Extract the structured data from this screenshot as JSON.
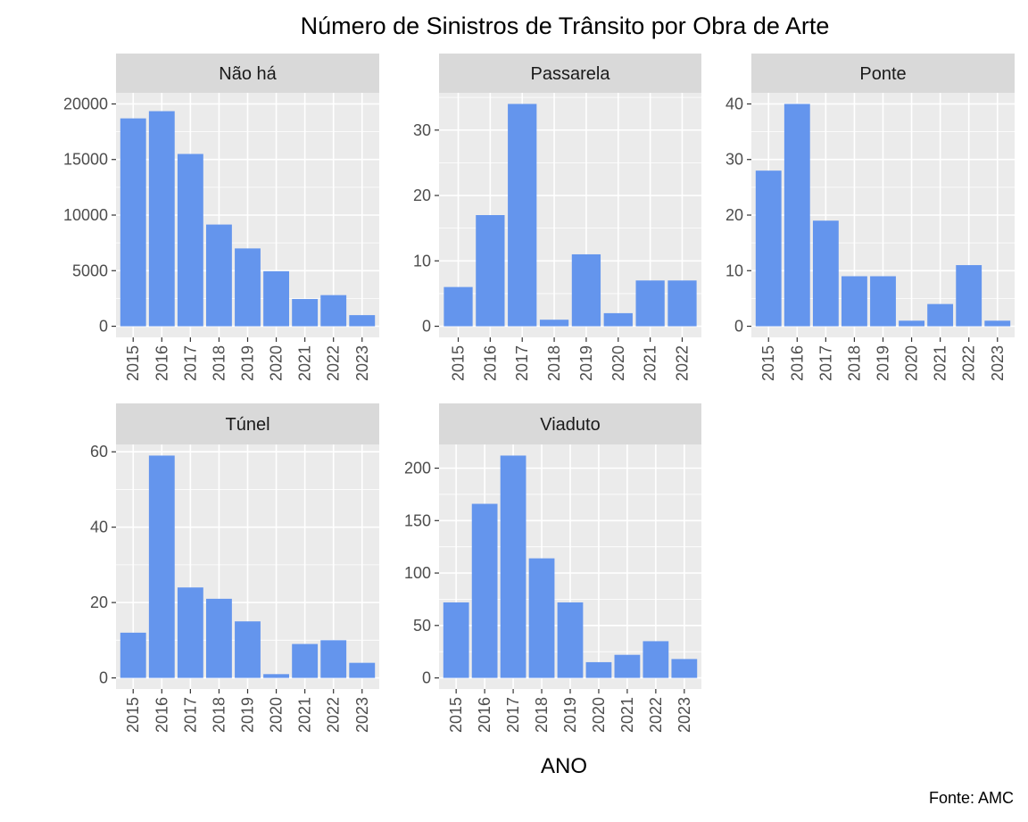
{
  "title": "Número de Sinistros de Trânsito por Obra de Arte",
  "xlabel": "ANO",
  "caption": "Fonte: AMC",
  "colors": {
    "bar": "#6495ED",
    "panel_background": "#EBEBEB",
    "strip_background": "#D9D9D9",
    "grid": "#FFFFFF",
    "tick_text": "#4D4D4D"
  },
  "chart_data": [
    {
      "type": "bar",
      "facet": "Não há",
      "categories": [
        "2015",
        "2016",
        "2017",
        "2018",
        "2019",
        "2020",
        "2021",
        "2022",
        "2023"
      ],
      "values": [
        18700,
        19350,
        15500,
        9150,
        7000,
        4950,
        2450,
        2800,
        1000
      ],
      "yticks": [
        0,
        5000,
        10000,
        15000,
        20000
      ],
      "ylim": [
        0,
        20000
      ],
      "grid": true
    },
    {
      "type": "bar",
      "facet": "Passarela",
      "categories": [
        "2015",
        "2016",
        "2017",
        "2018",
        "2019",
        "2020",
        "2021",
        "2022"
      ],
      "values": [
        6,
        17,
        34,
        1,
        11,
        2,
        7,
        7
      ],
      "yticks": [
        0,
        10,
        20,
        30
      ],
      "ylim": [
        0,
        34
      ],
      "grid": true
    },
    {
      "type": "bar",
      "facet": "Ponte",
      "categories": [
        "2015",
        "2016",
        "2017",
        "2018",
        "2019",
        "2020",
        "2021",
        "2022",
        "2023"
      ],
      "values": [
        28,
        40,
        19,
        9,
        9,
        1,
        4,
        11,
        1
      ],
      "yticks": [
        0,
        10,
        20,
        30,
        40
      ],
      "ylim": [
        0,
        40
      ],
      "grid": true
    },
    {
      "type": "bar",
      "facet": "Túnel",
      "categories": [
        "2015",
        "2016",
        "2017",
        "2018",
        "2019",
        "2020",
        "2021",
        "2022",
        "2023"
      ],
      "values": [
        12,
        59,
        24,
        21,
        15,
        1,
        9,
        10,
        4
      ],
      "yticks": [
        0,
        20,
        40,
        60
      ],
      "ylim": [
        0,
        59
      ],
      "grid": true
    },
    {
      "type": "bar",
      "facet": "Viaduto",
      "categories": [
        "2015",
        "2016",
        "2017",
        "2018",
        "2019",
        "2020",
        "2021",
        "2022",
        "2023"
      ],
      "values": [
        72,
        166,
        212,
        114,
        72,
        15,
        22,
        35,
        18
      ],
      "yticks": [
        0,
        50,
        100,
        150,
        200
      ],
      "ylim": [
        0,
        212
      ],
      "grid": true
    }
  ]
}
